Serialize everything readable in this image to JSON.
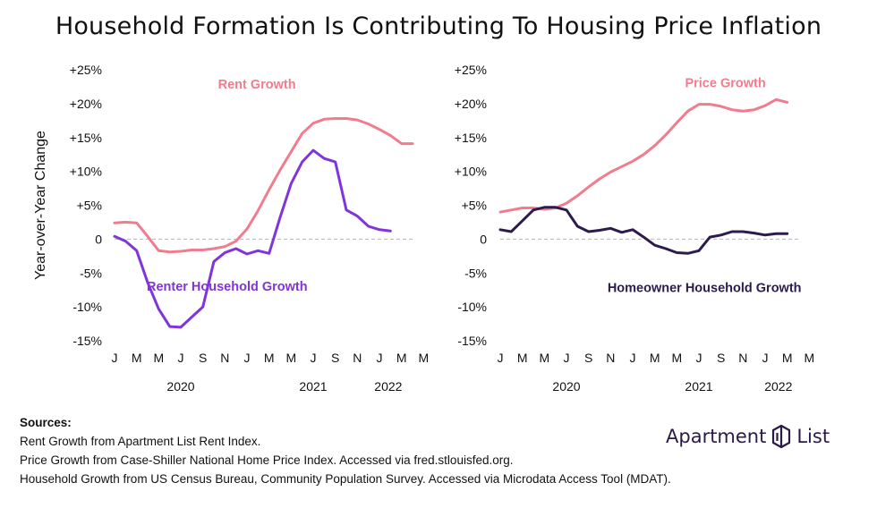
{
  "title": "Household Formation Is Contributing To Housing Price Inflation",
  "colors": {
    "pink": "#f07c8e",
    "purple": "#7f35d9",
    "dark": "#2d1b4e",
    "zero": "#b5b5b5",
    "text": "#111111"
  },
  "chart_data": [
    {
      "type": "line",
      "ylabel": "Year-over-Year Change",
      "ylim": [
        -15,
        25
      ],
      "yticks": [
        25,
        20,
        15,
        10,
        5,
        0,
        -5,
        -10,
        -15
      ],
      "ytick_labels": [
        "+25%",
        "+20%",
        "+15%",
        "+10%",
        "+5%",
        "0",
        "-5%",
        "-10%",
        "-15%"
      ],
      "xlim": [
        0,
        27
      ],
      "xtick_labels": [
        "J",
        "M",
        "M",
        "J",
        "S",
        "N",
        "J",
        "M",
        "M",
        "J",
        "S",
        "N",
        "J",
        "M",
        "M"
      ],
      "year_labels": [
        {
          "text": "2020",
          "x": 6
        },
        {
          "text": "2021",
          "x": 18
        },
        {
          "text": "2022",
          "x": 24.8
        }
      ],
      "series": [
        {
          "name": "Rent Growth",
          "color": "#f07c8e",
          "label_x": 12.9,
          "label_y": 22.2,
          "label_weight": "bold",
          "x": [
            0,
            1,
            2,
            3,
            4,
            5,
            6,
            7,
            8,
            9,
            10,
            11,
            12,
            13,
            14,
            15,
            16,
            17,
            18,
            19,
            20,
            21,
            22,
            23,
            24,
            25,
            26,
            27
          ],
          "values": [
            2.4,
            2.5,
            2.4,
            0.4,
            -1.7,
            -1.9,
            -1.8,
            -1.6,
            -1.6,
            -1.4,
            -1.1,
            -0.3,
            1.5,
            4.2,
            7.3,
            10.2,
            12.9,
            15.6,
            17.1,
            17.7,
            17.8,
            17.8,
            17.6,
            17.0,
            16.2,
            15.3,
            14.1,
            14.1
          ]
        },
        {
          "name": "Renter Household Growth",
          "color": "#7f35d9",
          "label_x": 10.2,
          "label_y": -7.6,
          "label_weight": "bold",
          "x": [
            0,
            1,
            2,
            3,
            4,
            5,
            6,
            7,
            8,
            9,
            10,
            11,
            12,
            13,
            14,
            15,
            16,
            17,
            18,
            19,
            20,
            21,
            22,
            23,
            24,
            25
          ],
          "values": [
            0.4,
            -0.3,
            -1.7,
            -6.4,
            -10.3,
            -12.9,
            -13.0,
            -11.5,
            -10.0,
            -3.3,
            -2.0,
            -1.4,
            -2.2,
            -1.7,
            -2.1,
            3.2,
            8.2,
            11.4,
            13.1,
            11.9,
            11.4,
            4.3,
            3.4,
            1.9,
            1.4,
            1.2
          ]
        }
      ]
    },
    {
      "type": "line",
      "ylim": [
        -15,
        25
      ],
      "yticks": [
        25,
        20,
        15,
        10,
        5,
        0,
        -5,
        -10,
        -15
      ],
      "ytick_labels": [
        "+25%",
        "+20%",
        "+15%",
        "+10%",
        "+5%",
        "0",
        "-5%",
        "-10%",
        "-15%"
      ],
      "xlim": [
        0,
        27
      ],
      "xtick_labels": [
        "J",
        "M",
        "M",
        "J",
        "S",
        "N",
        "J",
        "M",
        "M",
        "J",
        "S",
        "N",
        "J",
        "M",
        "M"
      ],
      "year_labels": [
        {
          "text": "2020",
          "x": 6
        },
        {
          "text": "2021",
          "x": 18
        },
        {
          "text": "2022",
          "x": 25.2
        }
      ],
      "series": [
        {
          "name": "Price Growth",
          "color": "#f07c8e",
          "label_x": 20.4,
          "label_y": 22.4,
          "label_weight": "bold",
          "x": [
            0,
            1,
            2,
            3,
            4,
            5,
            6,
            7,
            8,
            9,
            10,
            11,
            12,
            13,
            14,
            15,
            16,
            17,
            18,
            19,
            20,
            21,
            22,
            23,
            24,
            25,
            26
          ],
          "values": [
            4.0,
            4.3,
            4.6,
            4.6,
            4.4,
            4.6,
            5.3,
            6.4,
            7.7,
            8.9,
            9.9,
            10.7,
            11.5,
            12.5,
            13.8,
            15.4,
            17.2,
            18.9,
            19.9,
            19.9,
            19.6,
            19.1,
            18.9,
            19.1,
            19.7,
            20.6,
            20.2
          ]
        },
        {
          "name": "Homeowner Household Growth",
          "color": "#2d1b4e",
          "label_x": 18.5,
          "label_y": -7.8,
          "label_weight": "bold",
          "x": [
            0,
            1,
            2,
            3,
            4,
            5,
            6,
            7,
            8,
            9,
            10,
            11,
            12,
            13,
            14,
            15,
            16,
            17,
            18,
            19,
            20,
            21,
            22,
            23,
            24,
            25,
            26
          ],
          "values": [
            1.4,
            1.1,
            2.7,
            4.3,
            4.7,
            4.7,
            4.3,
            1.9,
            1.1,
            1.3,
            1.6,
            1.0,
            1.4,
            0.3,
            -0.9,
            -1.4,
            -2.0,
            -2.1,
            -1.7,
            0.3,
            0.6,
            1.1,
            1.1,
            0.9,
            0.6,
            0.8,
            0.8
          ]
        }
      ]
    }
  ],
  "sources": {
    "heading": "Sources:",
    "lines": [
      "Rent Growth from Apartment List Rent Index.",
      "Price Growth from Case-Shiller National Home Price Index. Accessed via fred.stlouisfed.org.",
      "Household Growth from US Census Bureau, Community Population Survey. Accessed via Microdata Access Tool (MDAT)."
    ]
  },
  "logo": {
    "word1": "Apartment",
    "word2": "List"
  }
}
